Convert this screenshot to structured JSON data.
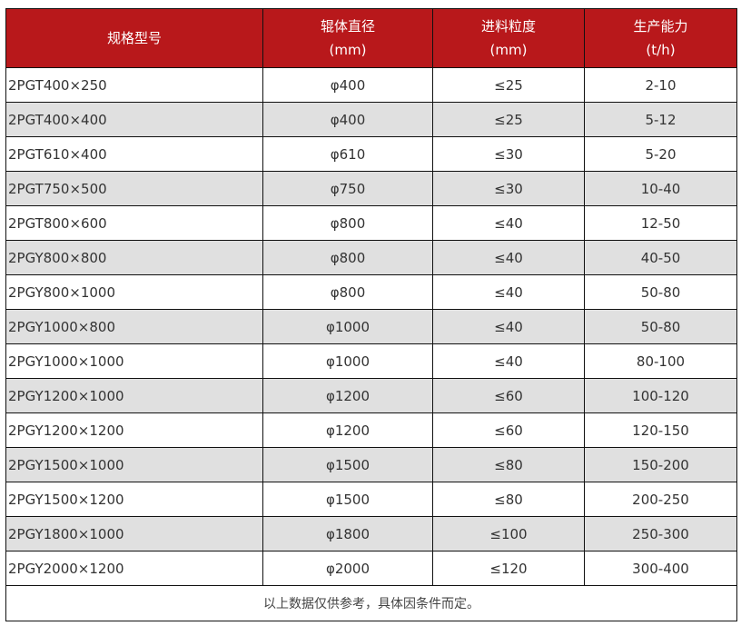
{
  "header": {
    "columns": [
      {
        "line1": "规格型号",
        "line2": ""
      },
      {
        "line1": "辊体直径",
        "line2": "(mm)"
      },
      {
        "line1": "进料粒度",
        "line2": "(mm)"
      },
      {
        "line1": "生产能力",
        "line2": "(t/h)"
      }
    ]
  },
  "rows": [
    [
      "2PGT400×250",
      "φ400",
      "≤25",
      "2-10"
    ],
    [
      "2PGT400×400",
      "φ400",
      "≤25",
      "5-12"
    ],
    [
      "2PGT610×400",
      "φ610",
      "≤30",
      "5-20"
    ],
    [
      "2PGT750×500",
      "φ750",
      "≤30",
      "10-40"
    ],
    [
      "2PGT800×600",
      "φ800",
      "≤40",
      "12-50"
    ],
    [
      "2PGY800×800",
      "φ800",
      "≤40",
      "40-50"
    ],
    [
      "2PGY800×1000",
      "φ800",
      "≤40",
      "50-80"
    ],
    [
      "2PGY1000×800",
      "φ1000",
      "≤40",
      "50-80"
    ],
    [
      "2PGY1000×1000",
      "φ1000",
      "≤40",
      "80-100"
    ],
    [
      "2PGY1200×1000",
      "φ1200",
      "≤60",
      "100-120"
    ],
    [
      "2PGY1200×1200",
      "φ1200",
      "≤60",
      "120-150"
    ],
    [
      "2PGY1500×1000",
      "φ1500",
      "≤80",
      "150-200"
    ],
    [
      "2PGY1500×1200",
      "φ1500",
      "≤80",
      "200-250"
    ],
    [
      "2PGY1800×1000",
      "φ1800",
      "≤100",
      "250-300"
    ],
    [
      "2PGY2000×1200",
      "φ2000",
      "≤120",
      "300-400"
    ]
  ],
  "footer": "以上数据仅供参考，具体因条件而定。",
  "colors": {
    "header_bg": "#b8181b",
    "alt_row_bg": "#e0e0e0"
  }
}
